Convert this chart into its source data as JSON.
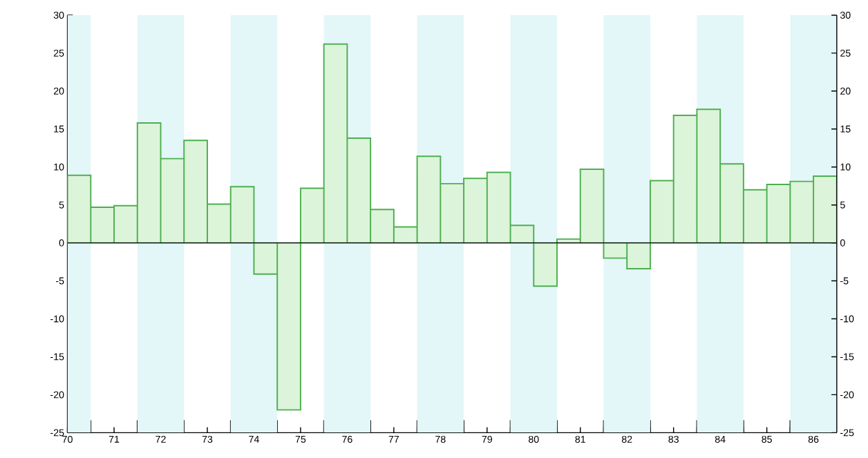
{
  "chart_data": {
    "type": "bar",
    "x": [
      70.25,
      70.75,
      71.25,
      71.75,
      72.25,
      72.75,
      73.25,
      73.75,
      74.25,
      74.75,
      75.25,
      75.75,
      76.25,
      76.75,
      77.25,
      77.75,
      78.25,
      78.75,
      79.25,
      79.75,
      80.25,
      80.75,
      81.25,
      81.75,
      82.25,
      82.75,
      83.25,
      83.75,
      84.25,
      84.75,
      85.25,
      85.75,
      86.25
    ],
    "values": [
      8.9,
      4.7,
      4.9,
      15.8,
      11.1,
      13.5,
      5.1,
      7.4,
      -4.1,
      -22.0,
      7.2,
      26.2,
      13.8,
      4.4,
      2.1,
      11.4,
      7.8,
      8.5,
      9.3,
      2.3,
      -5.7,
      0.5,
      9.7,
      -2.0,
      -3.4,
      8.2,
      16.8,
      17.6,
      10.4,
      7.0,
      7.7,
      8.1,
      8.8
    ],
    "color": "#dcf4d9",
    "xlim": [
      70,
      86.5
    ],
    "xticks": [
      70,
      {
        "value": 70.5,
        "label": null
      },
      71,
      {
        "value": 71.5,
        "label": null
      },
      72,
      {
        "value": 72.5,
        "label": null
      },
      73,
      {
        "value": 73.5,
        "label": null
      },
      74,
      {
        "value": 74.5,
        "label": null
      },
      75,
      {
        "value": 75.5,
        "label": null
      },
      76,
      {
        "value": 76.5,
        "label": null
      },
      77,
      {
        "value": 77.5,
        "label": null
      },
      78,
      {
        "value": 78.5,
        "label": null
      },
      79,
      {
        "value": 79.5,
        "label": null
      },
      80,
      {
        "value": 80.5,
        "label": null
      },
      81,
      {
        "value": 81.5,
        "label": null
      },
      82,
      {
        "value": 82.5,
        "label": null
      },
      83,
      {
        "value": 83.5,
        "label": null
      },
      84,
      {
        "value": 84.5,
        "label": null
      },
      85,
      {
        "value": 85.5,
        "label": null
      },
      86
    ],
    "ylim": [
      -25,
      30
    ],
    "yticks": [
      -25,
      -20,
      -15,
      -10,
      -5,
      0,
      5,
      10,
      15,
      20,
      25,
      30
    ],
    "y2lim": [
      -25,
      30
    ],
    "y2ticks": [
      -25,
      -20,
      -15,
      -10,
      -5,
      0,
      5,
      10,
      15,
      20,
      25,
      30
    ],
    "bands": [
      {
        "axis": "x",
        "from": 70,
        "to": 70.5,
        "color": "#e3f6f8"
      },
      {
        "axis": "x",
        "from": 71.5,
        "to": 72.5,
        "color": "#e3f6f8"
      },
      {
        "axis": "x",
        "from": 73.5,
        "to": 74.5,
        "color": "#e3f6f8"
      },
      {
        "axis": "x",
        "from": 75.5,
        "to": 76.5,
        "color": "#e3f6f8"
      },
      {
        "axis": "x",
        "from": 77.5,
        "to": 78.5,
        "color": "#e3f6f8"
      },
      {
        "axis": "x",
        "from": 79.5,
        "to": 80.5,
        "color": "#e3f6f8"
      },
      {
        "axis": "x",
        "from": 81.5,
        "to": 82.5,
        "color": "#e3f6f8"
      },
      {
        "axis": "x",
        "from": 83.5,
        "to": 84.5,
        "color": "#e3f6f8"
      },
      {
        "axis": "x",
        "from": 85.5,
        "to": 86.5,
        "color": "#e3f6f8"
      }
    ]
  }
}
